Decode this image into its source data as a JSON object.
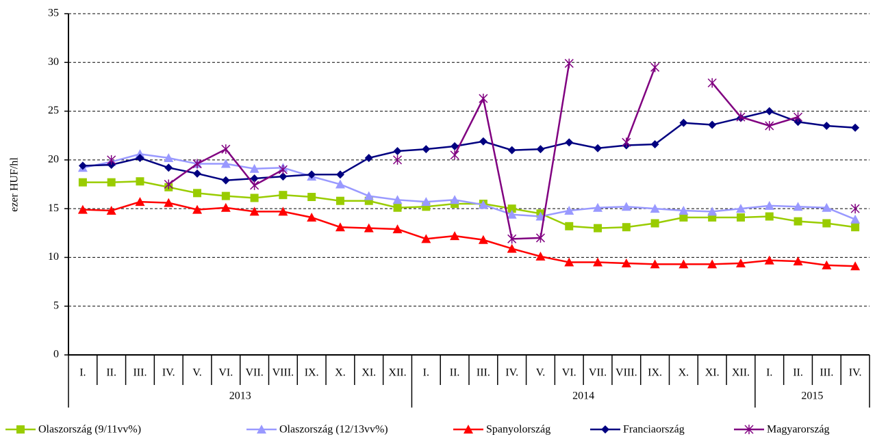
{
  "chart_data": {
    "type": "line",
    "y_label": "ezer HUF/hl",
    "ylim": [
      0,
      35
    ],
    "yticks": [
      0,
      5,
      10,
      15,
      20,
      25,
      30,
      35
    ],
    "grid": true,
    "category_groups": [
      {
        "label": "2013",
        "categories": [
          "I.",
          "II.",
          "III.",
          "IV.",
          "V.",
          "VI.",
          "VII.",
          "VIII.",
          "IX.",
          "X.",
          "XI.",
          "XII."
        ]
      },
      {
        "label": "2014",
        "categories": [
          "I.",
          "II.",
          "III.",
          "IV.",
          "V.",
          "VI.",
          "VII.",
          "VIII.",
          "IX.",
          "X.",
          "XI.",
          "XII."
        ]
      },
      {
        "label": "2015",
        "categories": [
          "I.",
          "II.",
          "III.",
          "IV."
        ]
      }
    ],
    "series": [
      {
        "name": "Olaszország (9/11vv%)",
        "color": "#99cc00",
        "marker": "square",
        "values": [
          17.7,
          17.7,
          17.8,
          17.2,
          16.6,
          16.3,
          16.1,
          16.4,
          16.2,
          15.8,
          15.8,
          15.1,
          15.2,
          15.5,
          15.5,
          15.0,
          14.5,
          13.2,
          13.0,
          13.1,
          13.5,
          14.1,
          14.1,
          14.1,
          14.2,
          13.7,
          13.5,
          13.1
        ]
      },
      {
        "name": "Olaszország (12/13vv%)",
        "color": "#9999ff",
        "marker": "triangle",
        "values": [
          19.2,
          19.8,
          20.6,
          20.2,
          19.6,
          19.6,
          19.1,
          19.2,
          18.3,
          17.5,
          16.3,
          15.9,
          15.7,
          15.9,
          15.4,
          14.4,
          14.2,
          14.8,
          15.1,
          15.2,
          15.0,
          14.8,
          14.7,
          15.0,
          15.3,
          15.2,
          15.1,
          13.9
        ]
      },
      {
        "name": "Spanyolország",
        "color": "#ff0000",
        "marker": "triangle",
        "values": [
          14.9,
          14.8,
          15.7,
          15.6,
          14.9,
          15.1,
          14.7,
          14.7,
          14.1,
          13.1,
          13.0,
          12.9,
          11.9,
          12.2,
          11.8,
          10.9,
          10.1,
          9.5,
          9.5,
          9.4,
          9.3,
          9.3,
          9.3,
          9.4,
          9.7,
          9.6,
          9.2,
          9.1
        ]
      },
      {
        "name": "Franciaország",
        "color": "#000080",
        "marker": "diamond",
        "values": [
          19.4,
          19.5,
          20.2,
          19.2,
          18.6,
          17.9,
          18.1,
          18.3,
          18.5,
          18.5,
          20.2,
          20.9,
          21.1,
          21.4,
          21.9,
          21.0,
          21.1,
          21.8,
          21.2,
          21.5,
          21.6,
          23.8,
          23.6,
          24.3,
          25.0,
          23.9,
          23.5,
          23.3
        ]
      },
      {
        "name": "Magyarország",
        "color": "#800080",
        "marker": "star",
        "values": [
          null,
          20.0,
          null,
          17.5,
          19.6,
          21.1,
          17.4,
          19.0,
          null,
          null,
          null,
          20.0,
          null,
          20.5,
          26.3,
          11.9,
          12.0,
          29.9,
          null,
          21.8,
          29.5,
          null,
          27.9,
          24.4,
          23.5,
          24.4,
          null,
          15.0
        ]
      }
    ]
  }
}
